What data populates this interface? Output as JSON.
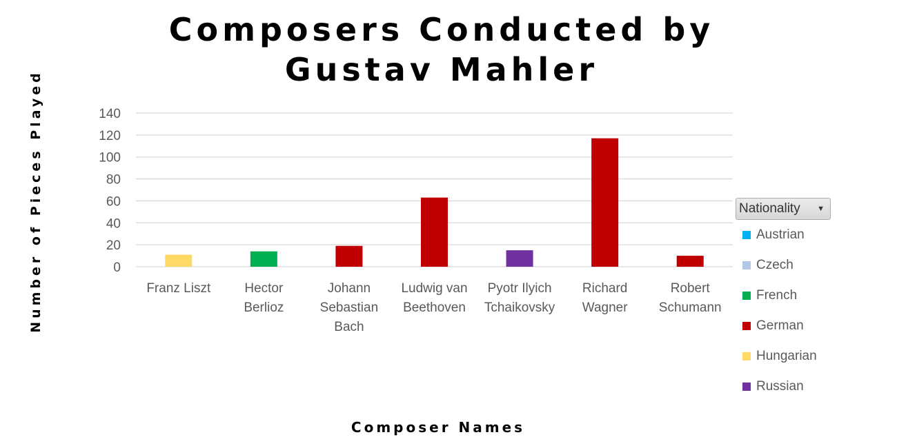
{
  "chart_data": {
    "type": "bar",
    "title": "Composers Conducted by Gustav Mahler",
    "xlabel": "Composer Names",
    "ylabel": "Number of Pieces Played",
    "ylim": [
      0,
      140
    ],
    "yticks": [
      0,
      20,
      40,
      60,
      80,
      100,
      120,
      140
    ],
    "grid": true,
    "legend_placement": "right",
    "categories": [
      "Franz Liszt",
      "Hector Berlioz",
      "Johann Sebastian Bach",
      "Ludwig van Beethoven",
      "Pyotr Ilyich Tchaikovsky",
      "Richard Wagner",
      "Robert Schumann"
    ],
    "category_lines": [
      [
        "Franz Liszt"
      ],
      [
        "Hector",
        "Berlioz"
      ],
      [
        "Johann",
        "Sebastian",
        "Bach"
      ],
      [
        "Ludwig van",
        "Beethoven"
      ],
      [
        "Pyotr Ilyich",
        "Tchaikovsky"
      ],
      [
        "Richard",
        "Wagner"
      ],
      [
        "Robert",
        "Schumann"
      ]
    ],
    "values": [
      11,
      14,
      19,
      63,
      15,
      117,
      10
    ],
    "nationality": [
      "Hungarian",
      "French",
      "German",
      "German",
      "Russian",
      "German",
      "German"
    ],
    "legend": {
      "title": "Nationality",
      "entries": [
        {
          "name": "Austrian",
          "color": "#00b0f0"
        },
        {
          "name": "Czech",
          "color": "#b4c7e7"
        },
        {
          "name": "French",
          "color": "#00b050"
        },
        {
          "name": "German",
          "color": "#c00000"
        },
        {
          "name": "Hungarian",
          "color": "#ffd966"
        },
        {
          "name": "Russian",
          "color": "#7030a0"
        }
      ]
    }
  }
}
